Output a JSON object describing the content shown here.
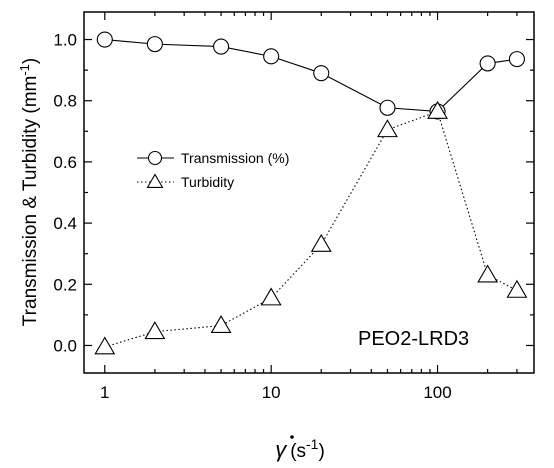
{
  "chart_data": {
    "type": "line",
    "title": "",
    "xlabel": "γ̇ (s⁻¹)",
    "ylabel": "Transmission & Turbidity (mm⁻¹)",
    "xscale": "log",
    "xlim": [
      0.75,
      380
    ],
    "ylim": [
      -0.09,
      1.09
    ],
    "xticks": [
      1,
      10,
      100
    ],
    "xtick_labels": [
      "1",
      "10",
      "100"
    ],
    "yticks": [
      0.0,
      0.2,
      0.4,
      0.6,
      0.8,
      1.0
    ],
    "ytick_labels": [
      "0.0",
      "0.2",
      "0.4",
      "0.6",
      "0.8",
      "1.0"
    ],
    "grid": false,
    "legend_position": "center-left",
    "annotation": "PEO2-LRD3",
    "x": [
      1,
      2,
      5,
      10,
      20,
      50,
      100,
      200,
      300
    ],
    "series": [
      {
        "name": "Transmission (%)",
        "marker": "circle",
        "line_style": "solid",
        "values": [
          1.0,
          0.985,
          0.977,
          0.945,
          0.89,
          0.777,
          0.765,
          0.922,
          0.936
        ]
      },
      {
        "name": "Turbidity",
        "marker": "triangle",
        "line_style": "dotted",
        "values": [
          -0.005,
          0.045,
          0.065,
          0.155,
          0.33,
          0.705,
          0.765,
          0.23,
          0.18
        ]
      }
    ]
  }
}
